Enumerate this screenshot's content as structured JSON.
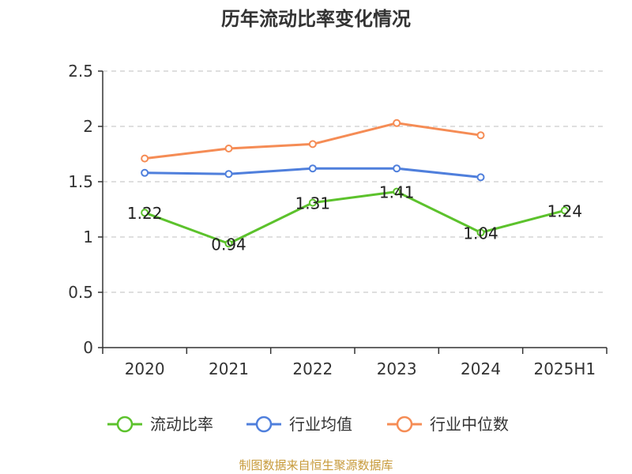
{
  "chart_data": {
    "type": "line",
    "title": "历年流动比率变化情况",
    "categories": [
      "2020",
      "2021",
      "2022",
      "2023",
      "2024",
      "2025H1"
    ],
    "y_ticks": [
      "0",
      "0.5",
      "1",
      "1.5",
      "2",
      "2.5"
    ],
    "ylim": [
      0,
      2.5
    ],
    "grid": true,
    "legend_position": "bottom",
    "series": [
      {
        "name": "流动比率",
        "color": "#5cc22c",
        "values": [
          1.22,
          0.94,
          1.31,
          1.41,
          1.04,
          1.24
        ],
        "labels": [
          "1.22",
          "0.94",
          "1.31",
          "1.41",
          "1.04",
          "1.24"
        ]
      },
      {
        "name": "行业均值",
        "color": "#4f7fdc",
        "values": [
          1.58,
          1.57,
          1.62,
          1.62,
          1.54,
          null
        ]
      },
      {
        "name": "行业中位数",
        "color": "#f58c55",
        "values": [
          1.71,
          1.8,
          1.84,
          2.03,
          1.92,
          null
        ]
      }
    ]
  },
  "footer": {
    "source": "制图数据来自恒生聚源数据库"
  }
}
